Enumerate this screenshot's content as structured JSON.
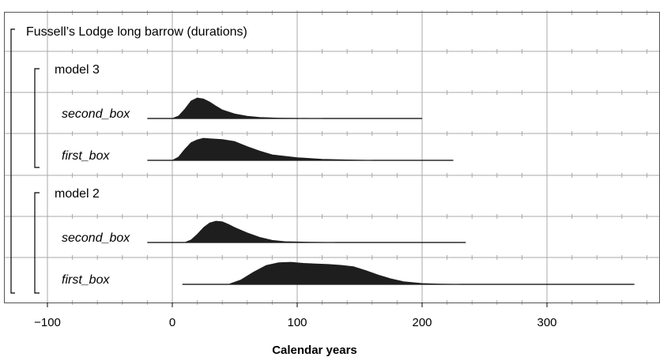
{
  "chart_data": {
    "type": "area",
    "title": "Fussell’s Lodge long barrow (durations)",
    "xlabel": "Calendar years",
    "ylabel": "",
    "xlim": [
      -110,
      380
    ],
    "xticks": [
      -100,
      0,
      100,
      200,
      300
    ],
    "xtick_labels": [
      "−100",
      "0",
      "100",
      "200",
      "300"
    ],
    "grid": true,
    "groups": [
      {
        "label": "model 3",
        "series": [
          {
            "name": "second_box",
            "range": [
              -20,
              200
            ],
            "x": [
              0,
              5,
              10,
              15,
              20,
              25,
              30,
              35,
              40,
              50,
              60,
              70,
              85,
              100,
              120
            ],
            "y": [
              0,
              0.12,
              0.45,
              0.85,
              1.0,
              0.95,
              0.8,
              0.6,
              0.42,
              0.22,
              0.11,
              0.05,
              0.02,
              0.008,
              0
            ]
          },
          {
            "name": "first_box",
            "range": [
              -20,
              225
            ],
            "x": [
              0,
              5,
              10,
              15,
              20,
              25,
              30,
              40,
              50,
              60,
              70,
              80,
              100,
              120,
              140,
              160
            ],
            "y": [
              0,
              0.15,
              0.5,
              0.8,
              0.93,
              1.0,
              0.98,
              0.94,
              0.85,
              0.62,
              0.42,
              0.25,
              0.12,
              0.05,
              0.02,
              0
            ]
          }
        ]
      },
      {
        "label": "model 2",
        "series": [
          {
            "name": "second_box",
            "range": [
              -20,
              235
            ],
            "x": [
              10,
              15,
              20,
              25,
              30,
              35,
              40,
              45,
              50,
              60,
              70,
              80,
              90,
              110,
              130
            ],
            "y": [
              0,
              0.12,
              0.38,
              0.7,
              0.92,
              1.0,
              0.97,
              0.85,
              0.7,
              0.45,
              0.24,
              0.1,
              0.04,
              0.01,
              0
            ]
          },
          {
            "name": "first_box",
            "range": [
              8,
              370
            ],
            "x": [
              45,
              55,
              65,
              75,
              85,
              95,
              105,
              115,
              125,
              135,
              145,
              155,
              165,
              175,
              185,
              200,
              215,
              230
            ],
            "y": [
              0,
              0.2,
              0.55,
              0.85,
              0.98,
              1.0,
              0.95,
              0.92,
              0.9,
              0.86,
              0.8,
              0.62,
              0.42,
              0.25,
              0.12,
              0.04,
              0.01,
              0
            ]
          }
        ]
      }
    ]
  }
}
